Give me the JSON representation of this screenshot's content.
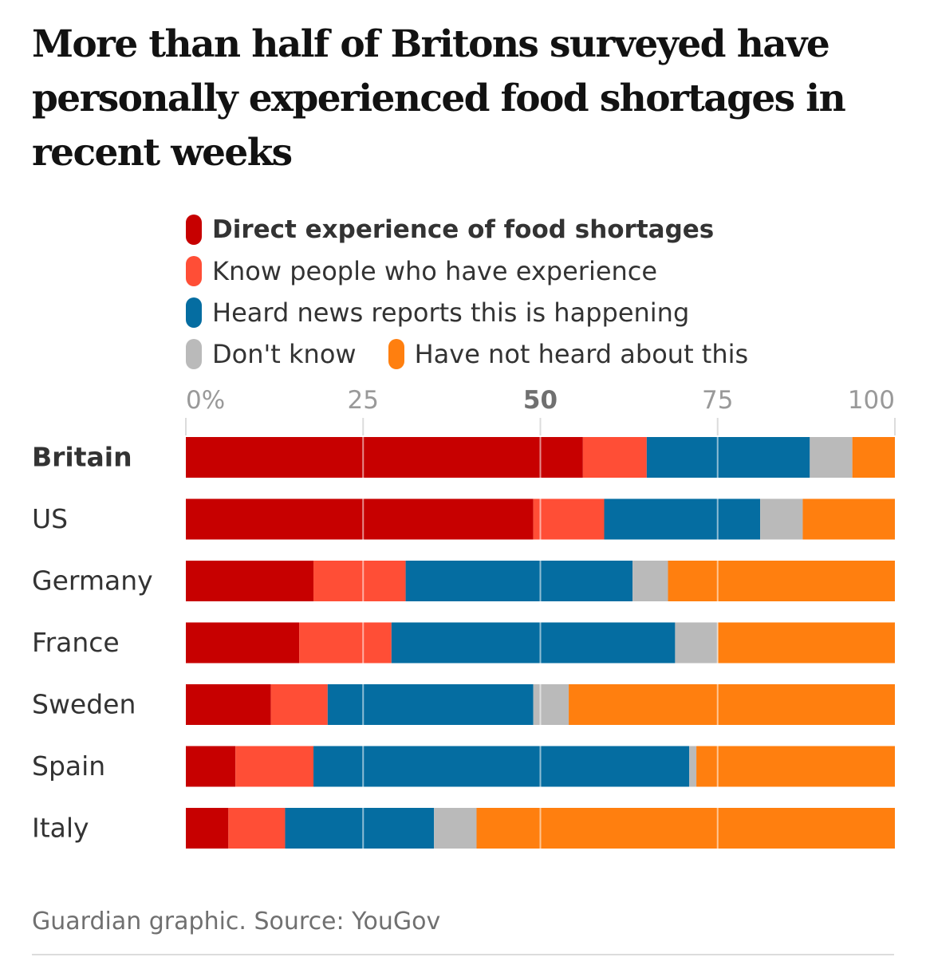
{
  "title": "More than half of Britons surveyed have personally experienced food shortages in recent weeks",
  "source": "Guardian graphic. Source: YouGov",
  "colors": {
    "direct": "#c70000",
    "know": "#ff4e36",
    "news": "#056da1",
    "dontknow": "#bababa",
    "notheard": "#ff7f0f",
    "gridline": "#dcdcdc",
    "tick_text": "#999999",
    "tick_text_strong": "#707070"
  },
  "chart_data": {
    "type": "bar",
    "orientation": "horizontal",
    "stacked": true,
    "xlim": [
      0,
      100
    ],
    "ticks": [
      {
        "value": 0,
        "label": "0%"
      },
      {
        "value": 25,
        "label": "25"
      },
      {
        "value": 50,
        "label": "50"
      },
      {
        "value": 75,
        "label": "75"
      },
      {
        "value": 100,
        "label": "100"
      }
    ],
    "highlight_tick": 50,
    "highlight_category": "Britain",
    "categories": [
      "Britain",
      "US",
      "Germany",
      "France",
      "Sweden",
      "Spain",
      "Italy"
    ],
    "series": [
      {
        "name": "Direct experience of food shortages",
        "key": "direct",
        "values": [
          56,
          49,
          18,
          16,
          12,
          7,
          6
        ]
      },
      {
        "name": "Know people who have experience",
        "key": "know",
        "values": [
          9,
          10,
          13,
          13,
          8,
          11,
          8
        ]
      },
      {
        "name": "Heard news reports this is happening",
        "key": "news",
        "values": [
          23,
          22,
          32,
          40,
          29,
          53,
          21
        ]
      },
      {
        "name": "Don't know",
        "key": "dontknow",
        "values": [
          6,
          6,
          5,
          6,
          5,
          1,
          6
        ]
      },
      {
        "name": "Have not heard about this",
        "key": "notheard",
        "values": [
          6,
          13,
          32,
          25,
          46,
          28,
          59
        ]
      }
    ]
  }
}
